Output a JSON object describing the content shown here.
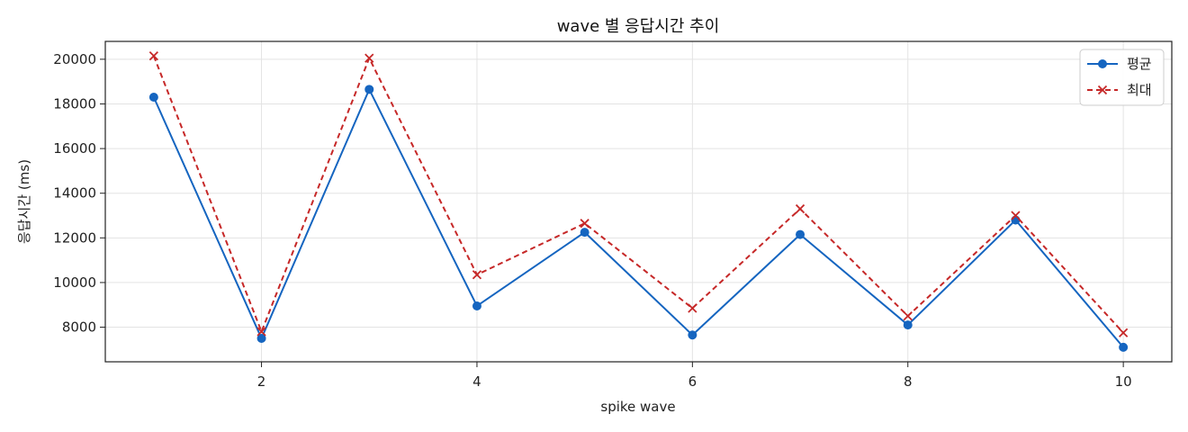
{
  "chart_data": {
    "type": "line",
    "title": "wave 별 응답시간 추이",
    "xlabel": "spike wave",
    "ylabel": "응답시간 (ms)",
    "x": [
      1,
      2,
      3,
      4,
      5,
      6,
      7,
      8,
      9,
      10
    ],
    "xticks": [
      2,
      4,
      6,
      8,
      10
    ],
    "yticks": [
      8000,
      10000,
      12000,
      14000,
      16000,
      18000,
      20000
    ],
    "xlim": [
      0.55,
      10.45
    ],
    "ylim": [
      6450,
      20800
    ],
    "grid": true,
    "legend_position": "top-right",
    "series": [
      {
        "name": "평균",
        "values": [
          18300,
          7500,
          18650,
          8950,
          12250,
          7650,
          12150,
          8100,
          12800,
          7100
        ],
        "color": "#1565c0",
        "line_style": "solid",
        "marker": "circle"
      },
      {
        "name": "최대",
        "values": [
          20150,
          7800,
          20050,
          10350,
          12650,
          8850,
          13300,
          8500,
          13000,
          7750
        ],
        "color": "#c62828",
        "line_style": "dashed",
        "marker": "x"
      }
    ]
  }
}
